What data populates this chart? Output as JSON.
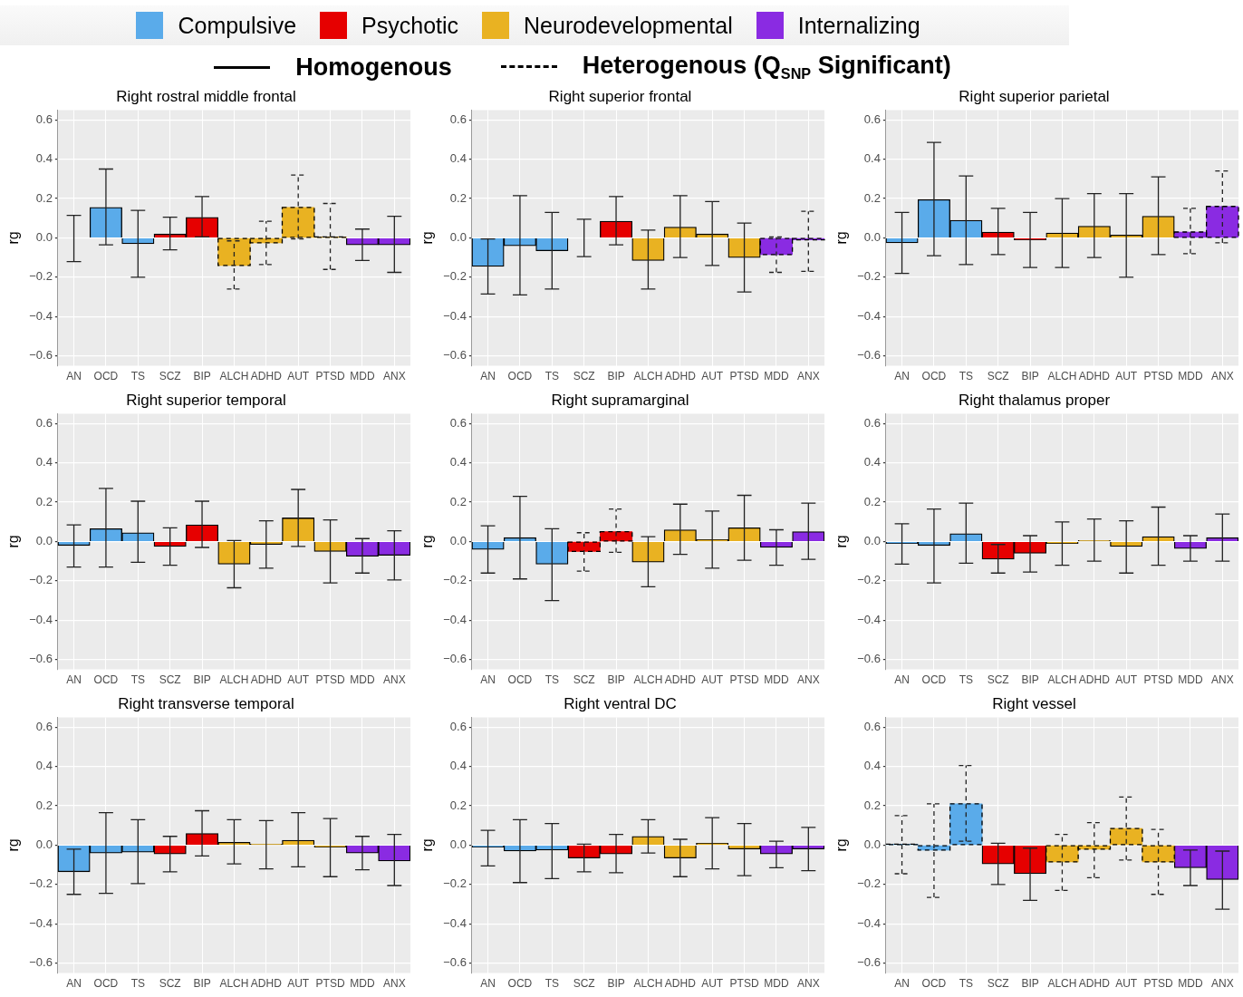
{
  "chart_data": [
    {
      "type": "bar",
      "title": "Right rostral middle frontal",
      "ylabel": "rg",
      "categories": [
        "AN",
        "OCD",
        "TS",
        "SCZ",
        "BIP",
        "ALCH",
        "ADHD",
        "AUT",
        "PTSD",
        "MDD",
        "ANX"
      ],
      "ylim": [
        -0.65,
        0.65
      ],
      "yticks": [
        {
          "value": -0.6,
          "label": "−0.6"
        },
        {
          "value": -0.4,
          "label": "−0.4"
        },
        {
          "value": -0.2,
          "label": "−0.2"
        },
        {
          "value": 0,
          "label": "0.0"
        },
        0.2,
        0.4,
        0.6
      ],
      "grid": true,
      "legend": "top",
      "annotations": [
        "Homogenous",
        "Heterogenous (Q$_{SNP}$ Significant)"
      ],
      "series": [
        {
          "name": "Compulsive",
          "color": "#5aabea",
          "line_style": "solid",
          "values": [
            0,
            0.155,
            -0.03,
            null,
            null,
            null,
            null,
            null,
            null,
            null,
            null
          ],
          "errors": [
            [
              -0.12,
              0.115
            ],
            [
              -0.035,
              0.35
            ],
            [
              -0.2,
              0.14
            ],
            null,
            null,
            null,
            null,
            null,
            null,
            null,
            null
          ]
        },
        {
          "name": "Psychotic",
          "color": "#e60000",
          "line_style": "solid",
          "values": [
            null,
            null,
            null,
            0.02,
            0.105,
            null,
            null,
            null,
            null,
            null,
            null
          ],
          "errors": [
            null,
            null,
            null,
            [
              -0.06,
              0.105
            ],
            [
              0.005,
              0.21
            ],
            null,
            null,
            null,
            null,
            null,
            null
          ]
        },
        {
          "name": "Neurodevelopmental",
          "color": "#e9b222",
          "line_style": "dashed",
          "values": [
            null,
            null,
            null,
            null,
            null,
            -0.14,
            -0.025,
            0.155,
            0.005,
            null,
            null
          ],
          "errors": [
            null,
            null,
            null,
            null,
            null,
            [
              -0.26,
              -0.015
            ],
            [
              -0.135,
              0.085
            ],
            [
              -0.005,
              0.32
            ],
            [
              -0.16,
              0.175
            ],
            null,
            null
          ]
        },
        {
          "name": "Internalizing",
          "color": "#8a2be2",
          "line_style": "solid",
          "values": [
            null,
            null,
            null,
            null,
            null,
            null,
            null,
            null,
            null,
            -0.035,
            -0.035
          ],
          "errors": [
            null,
            null,
            null,
            null,
            null,
            null,
            null,
            null,
            null,
            [
              -0.115,
              0.045
            ],
            [
              -0.175,
              0.11
            ]
          ]
        }
      ]
    },
    {
      "type": "bar",
      "title": "Right superior frontal",
      "ylabel": "rg",
      "categories": [
        "AN",
        "OCD",
        "TS",
        "SCZ",
        "BIP",
        "ALCH",
        "ADHD",
        "AUT",
        "PTSD",
        "MDD",
        "ANX"
      ],
      "ylim": [
        -0.65,
        0.65
      ],
      "yticks": [
        {
          "value": -0.6,
          "label": "−0.6"
        },
        {
          "value": -0.4,
          "label": "−0.4"
        },
        {
          "value": -0.2,
          "label": "−0.2"
        },
        {
          "value": 0,
          "label": "0.0"
        },
        0.2,
        0.4,
        0.6
      ],
      "grid": true,
      "series": [
        {
          "color": "#5aabea",
          "line_style": "solid",
          "values": [
            -0.145,
            -0.04,
            -0.065,
            null,
            null,
            null,
            null,
            null,
            null,
            null,
            null
          ],
          "errors": [
            [
              -0.285,
              -0.005
            ],
            [
              -0.29,
              0.215
            ],
            [
              -0.26,
              0.13
            ],
            null,
            null,
            null,
            null,
            null,
            null,
            null,
            null
          ]
        },
        {
          "color": "#e60000",
          "line_style": "solid",
          "values": [
            null,
            null,
            null,
            0,
            0.085,
            null,
            null,
            null,
            null,
            null,
            null
          ],
          "errors": [
            null,
            null,
            null,
            [
              -0.095,
              0.095
            ],
            [
              -0.035,
              0.21
            ],
            null,
            null,
            null,
            null,
            null,
            null
          ]
        },
        {
          "color": "#e9b222",
          "line_style": "solid",
          "values": [
            null,
            null,
            null,
            null,
            null,
            -0.115,
            0.055,
            0.02,
            -0.1,
            null,
            null
          ],
          "errors": [
            null,
            null,
            null,
            null,
            null,
            [
              -0.26,
              0.04
            ],
            [
              -0.1,
              0.215
            ],
            [
              -0.14,
              0.185
            ],
            [
              -0.275,
              0.075
            ],
            null,
            null
          ]
        },
        {
          "color": "#8a2be2",
          "line_style": "dashed",
          "values": [
            null,
            null,
            null,
            null,
            null,
            null,
            null,
            null,
            null,
            -0.085,
            -0.01
          ],
          "errors": [
            null,
            null,
            null,
            null,
            null,
            null,
            null,
            null,
            null,
            [
              -0.175,
              0.005
            ],
            [
              -0.17,
              0.135
            ]
          ]
        }
      ]
    },
    {
      "type": "bar",
      "title": "Right superior parietal",
      "ylabel": "rg",
      "categories": [
        "AN",
        "OCD",
        "TS",
        "SCZ",
        "BIP",
        "ALCH",
        "ADHD",
        "AUT",
        "PTSD",
        "MDD",
        "ANX"
      ],
      "ylim": [
        -0.65,
        0.65
      ],
      "yticks": [
        {
          "value": -0.6,
          "label": "−0.6"
        },
        {
          "value": -0.4,
          "label": "−0.4"
        },
        {
          "value": -0.2,
          "label": "−0.2"
        },
        {
          "value": 0,
          "label": "0.0"
        },
        0.2,
        0.4,
        0.6
      ],
      "grid": true,
      "series": [
        {
          "color": "#5aabea",
          "line_style": "solid",
          "values": [
            -0.025,
            0.195,
            0.09,
            null,
            null,
            null,
            null,
            null,
            null,
            null,
            null
          ],
          "errors": [
            [
              -0.18,
              0.13
            ],
            [
              -0.09,
              0.485
            ],
            [
              -0.135,
              0.315
            ],
            null,
            null,
            null,
            null,
            null,
            null,
            null,
            null
          ]
        },
        {
          "color": "#e60000",
          "line_style": "solid",
          "values": [
            null,
            null,
            null,
            0.03,
            -0.01,
            null,
            null,
            null,
            null,
            null,
            null
          ],
          "errors": [
            null,
            null,
            null,
            [
              -0.085,
              0.15
            ],
            [
              -0.15,
              0.13
            ],
            null,
            null,
            null,
            null,
            null,
            null
          ]
        },
        {
          "color": "#e9b222",
          "line_style": "solid",
          "values": [
            null,
            null,
            null,
            null,
            null,
            0.025,
            0.06,
            0.015,
            0.11,
            null,
            null
          ],
          "errors": [
            null,
            null,
            null,
            null,
            null,
            [
              -0.15,
              0.2
            ],
            [
              -0.1,
              0.225
            ],
            [
              -0.2,
              0.225
            ],
            [
              -0.085,
              0.31
            ],
            null,
            null
          ]
        },
        {
          "color": "#8a2be2",
          "line_style": "dashed",
          "values": [
            null,
            null,
            null,
            null,
            null,
            null,
            null,
            null,
            null,
            0.03,
            0.16
          ],
          "errors": [
            null,
            null,
            null,
            null,
            null,
            null,
            null,
            null,
            null,
            [
              -0.08,
              0.15
            ],
            [
              -0.025,
              0.34
            ]
          ]
        }
      ]
    },
    {
      "type": "bar",
      "title": "Right superior temporal",
      "ylabel": "rg",
      "categories": [
        "AN",
        "OCD",
        "TS",
        "SCZ",
        "BIP",
        "ALCH",
        "ADHD",
        "AUT",
        "PTSD",
        "MDD",
        "ANX"
      ],
      "ylim": [
        -0.65,
        0.65
      ],
      "yticks": [
        {
          "value": -0.6,
          "label": "−0.6"
        },
        {
          "value": -0.4,
          "label": "−0.4"
        },
        {
          "value": -0.2,
          "label": "−0.2"
        },
        {
          "value": 0,
          "label": "0.0"
        },
        0.2,
        0.4,
        0.6
      ],
      "grid": true,
      "series": [
        {
          "color": "#5aabea",
          "line_style": "solid",
          "values": [
            -0.02,
            0.065,
            0.045,
            null,
            null,
            null,
            null,
            null,
            null,
            null,
            null
          ],
          "errors": [
            [
              -0.13,
              0.085
            ],
            [
              -0.13,
              0.27
            ],
            [
              -0.105,
              0.205
            ],
            null,
            null,
            null,
            null,
            null,
            null,
            null,
            null
          ]
        },
        {
          "color": "#e60000",
          "line_style": "solid",
          "values": [
            null,
            null,
            null,
            -0.025,
            0.085,
            null,
            null,
            null,
            null,
            null,
            null
          ],
          "errors": [
            null,
            null,
            null,
            [
              -0.12,
              0.07
            ],
            [
              -0.03,
              0.205
            ],
            null,
            null,
            null,
            null,
            null,
            null
          ]
        },
        {
          "color": "#e9b222",
          "line_style": "solid",
          "values": [
            null,
            null,
            null,
            null,
            null,
            -0.115,
            -0.015,
            0.12,
            -0.05,
            null,
            null
          ],
          "errors": [
            null,
            null,
            null,
            null,
            null,
            [
              -0.235,
              0.005
            ],
            [
              -0.135,
              0.105
            ],
            [
              -0.025,
              0.265
            ],
            [
              -0.21,
              0.11
            ],
            null,
            null
          ]
        },
        {
          "color": "#8a2be2",
          "line_style": "solid",
          "values": [
            null,
            null,
            null,
            null,
            null,
            null,
            null,
            null,
            null,
            -0.075,
            -0.07
          ],
          "errors": [
            null,
            null,
            null,
            null,
            null,
            null,
            null,
            null,
            null,
            [
              -0.16,
              0.015
            ],
            [
              -0.195,
              0.055
            ]
          ]
        }
      ]
    },
    {
      "type": "bar",
      "title": "Right supramarginal",
      "ylabel": "rg",
      "categories": [
        "AN",
        "OCD",
        "TS",
        "SCZ",
        "BIP",
        "ALCH",
        "ADHD",
        "AUT",
        "PTSD",
        "MDD",
        "ANX"
      ],
      "ylim": [
        -0.65,
        0.65
      ],
      "yticks": [
        {
          "value": -0.6,
          "label": "−0.6"
        },
        {
          "value": -0.4,
          "label": "−0.4"
        },
        {
          "value": -0.2,
          "label": "−0.2"
        },
        {
          "value": 0,
          "label": "0.0"
        },
        0.2,
        0.4,
        0.6
      ],
      "grid": true,
      "series": [
        {
          "color": "#5aabea",
          "line_style": "solid",
          "values": [
            -0.04,
            0.02,
            -0.115,
            null,
            null,
            null,
            null,
            null,
            null,
            null,
            null
          ],
          "errors": [
            [
              -0.16,
              0.08
            ],
            [
              -0.19,
              0.23
            ],
            [
              -0.3,
              0.065
            ],
            null,
            null,
            null,
            null,
            null,
            null,
            null,
            null
          ]
        },
        {
          "color": "#e60000",
          "line_style": "dashed",
          "values": [
            null,
            null,
            null,
            -0.05,
            0.05,
            null,
            null,
            null,
            null,
            null,
            null
          ],
          "errors": [
            null,
            null,
            null,
            [
              -0.15,
              0.045
            ],
            [
              -0.055,
              0.165
            ],
            null,
            null,
            null,
            null,
            null,
            null
          ]
        },
        {
          "color": "#e9b222",
          "line_style": "solid",
          "values": [
            null,
            null,
            null,
            null,
            null,
            -0.105,
            0.06,
            0.01,
            0.07,
            null,
            null
          ],
          "errors": [
            null,
            null,
            null,
            null,
            null,
            [
              -0.23,
              0.025
            ],
            [
              -0.065,
              0.19
            ],
            [
              -0.135,
              0.155
            ],
            [
              -0.095,
              0.235
            ],
            null,
            null
          ]
        },
        {
          "color": "#8a2be2",
          "line_style": "solid",
          "values": [
            null,
            null,
            null,
            null,
            null,
            null,
            null,
            null,
            null,
            -0.03,
            0.05
          ],
          "errors": [
            null,
            null,
            null,
            null,
            null,
            null,
            null,
            null,
            null,
            [
              -0.12,
              0.06
            ],
            [
              -0.09,
              0.195
            ]
          ]
        }
      ]
    },
    {
      "type": "bar",
      "title": "Right thalamus proper",
      "ylabel": "rg",
      "categories": [
        "AN",
        "OCD",
        "TS",
        "SCZ",
        "BIP",
        "ALCH",
        "ADHD",
        "AUT",
        "PTSD",
        "MDD",
        "ANX"
      ],
      "ylim": [
        -0.65,
        0.65
      ],
      "yticks": [
        {
          "value": -0.6,
          "label": "−0.6"
        },
        {
          "value": -0.4,
          "label": "−0.4"
        },
        {
          "value": -0.2,
          "label": "−0.2"
        },
        {
          "value": 0,
          "label": "0.0"
        },
        0.2,
        0.4,
        0.6
      ],
      "grid": true,
      "series": [
        {
          "color": "#5aabea",
          "line_style": "solid",
          "values": [
            -0.01,
            -0.02,
            0.04,
            null,
            null,
            null,
            null,
            null,
            null,
            null,
            null
          ],
          "errors": [
            [
              -0.115,
              0.09
            ],
            [
              -0.21,
              0.165
            ],
            [
              -0.11,
              0.195
            ],
            null,
            null,
            null,
            null,
            null,
            null,
            null,
            null
          ]
        },
        {
          "color": "#e60000",
          "line_style": "solid",
          "values": [
            null,
            null,
            null,
            -0.09,
            -0.06,
            null,
            null,
            null,
            null,
            null,
            null
          ],
          "errors": [
            null,
            null,
            null,
            [
              -0.16,
              -0.015
            ],
            [
              -0.155,
              0.03
            ],
            null,
            null,
            null,
            null,
            null,
            null
          ]
        },
        {
          "color": "#e9b222",
          "line_style": "solid",
          "values": [
            null,
            null,
            null,
            null,
            null,
            -0.01,
            0.005,
            -0.025,
            0.025,
            null,
            null
          ],
          "errors": [
            null,
            null,
            null,
            null,
            null,
            [
              -0.12,
              0.1
            ],
            [
              -0.1,
              0.115
            ],
            [
              -0.16,
              0.105
            ],
            [
              -0.12,
              0.175
            ],
            null,
            null
          ]
        },
        {
          "color": "#8a2be2",
          "line_style": "solid",
          "values": [
            null,
            null,
            null,
            null,
            null,
            null,
            null,
            null,
            null,
            -0.035,
            0.02
          ],
          "errors": [
            null,
            null,
            null,
            null,
            null,
            null,
            null,
            null,
            null,
            [
              -0.1,
              0.03
            ],
            [
              -0.1,
              0.14
            ]
          ]
        }
      ]
    },
    {
      "type": "bar",
      "title": "Right transverse temporal",
      "ylabel": "rg",
      "categories": [
        "AN",
        "OCD",
        "TS",
        "SCZ",
        "BIP",
        "ALCH",
        "ADHD",
        "AUT",
        "PTSD",
        "MDD",
        "ANX"
      ],
      "ylim": [
        -0.65,
        0.65
      ],
      "yticks": [
        {
          "value": -0.6,
          "label": "−0.6"
        },
        {
          "value": -0.4,
          "label": "−0.4"
        },
        {
          "value": -0.2,
          "label": "−0.2"
        },
        {
          "value": 0,
          "label": "0.0"
        },
        0.2,
        0.4,
        0.6
      ],
      "grid": true,
      "series": [
        {
          "color": "#5aabea",
          "line_style": "solid",
          "values": [
            -0.135,
            -0.04,
            -0.035,
            null,
            null,
            null,
            null,
            null,
            null,
            null,
            null
          ],
          "errors": [
            [
              -0.25,
              -0.02
            ],
            [
              -0.245,
              0.165
            ],
            [
              -0.195,
              0.13
            ],
            null,
            null,
            null,
            null,
            null,
            null,
            null,
            null
          ]
        },
        {
          "color": "#e60000",
          "line_style": "solid",
          "values": [
            null,
            null,
            null,
            -0.045,
            0.06,
            null,
            null,
            null,
            null,
            null,
            null
          ],
          "errors": [
            null,
            null,
            null,
            [
              -0.135,
              0.045
            ],
            [
              -0.055,
              0.175
            ],
            null,
            null,
            null,
            null,
            null,
            null
          ]
        },
        {
          "color": "#e9b222",
          "line_style": "solid",
          "values": [
            null,
            null,
            null,
            null,
            null,
            0.015,
            0.005,
            0.025,
            -0.01,
            null,
            null
          ],
          "errors": [
            null,
            null,
            null,
            null,
            null,
            [
              -0.095,
              0.13
            ],
            [
              -0.12,
              0.125
            ],
            [
              -0.11,
              0.165
            ],
            [
              -0.16,
              0.135
            ],
            null,
            null
          ]
        },
        {
          "color": "#8a2be2",
          "line_style": "solid",
          "values": [
            null,
            null,
            null,
            null,
            null,
            null,
            null,
            null,
            null,
            -0.04,
            -0.08
          ],
          "errors": [
            null,
            null,
            null,
            null,
            null,
            null,
            null,
            null,
            null,
            [
              -0.125,
              0.045
            ],
            [
              -0.205,
              0.055
            ]
          ]
        }
      ]
    },
    {
      "type": "bar",
      "title": "Right ventral DC",
      "ylabel": "rg",
      "categories": [
        "AN",
        "OCD",
        "TS",
        "SCZ",
        "BIP",
        "ALCH",
        "ADHD",
        "AUT",
        "PTSD",
        "MDD",
        "ANX"
      ],
      "ylim": [
        -0.65,
        0.65
      ],
      "yticks": [
        {
          "value": -0.6,
          "label": "−0.6"
        },
        {
          "value": -0.4,
          "label": "−0.4"
        },
        {
          "value": -0.2,
          "label": "−0.2"
        },
        {
          "value": 0,
          "label": "0.0"
        },
        0.2,
        0.4,
        0.6
      ],
      "grid": true,
      "series": [
        {
          "color": "#5aabea",
          "line_style": "solid",
          "values": [
            -0.01,
            -0.03,
            -0.025,
            null,
            null,
            null,
            null,
            null,
            null,
            null,
            null
          ],
          "errors": [
            [
              -0.105,
              0.075
            ],
            [
              -0.19,
              0.13
            ],
            [
              -0.17,
              0.11
            ],
            null,
            null,
            null,
            null,
            null,
            null,
            null,
            null
          ]
        },
        {
          "color": "#e60000",
          "line_style": "solid",
          "values": [
            null,
            null,
            null,
            -0.065,
            -0.045,
            null,
            null,
            null,
            null,
            null,
            null
          ],
          "errors": [
            null,
            null,
            null,
            [
              -0.135,
              0.005
            ],
            [
              -0.14,
              0.055
            ],
            null,
            null,
            null,
            null,
            null,
            null
          ]
        },
        {
          "color": "#e9b222",
          "line_style": "solid",
          "values": [
            null,
            null,
            null,
            null,
            null,
            0.045,
            -0.065,
            0.01,
            -0.02,
            null,
            null
          ],
          "errors": [
            null,
            null,
            null,
            null,
            null,
            [
              -0.04,
              0.13
            ],
            [
              -0.16,
              0.03
            ],
            [
              -0.12,
              0.14
            ],
            [
              -0.155,
              0.11
            ],
            null,
            null
          ]
        },
        {
          "color": "#8a2be2",
          "line_style": "solid",
          "values": [
            null,
            null,
            null,
            null,
            null,
            null,
            null,
            null,
            null,
            -0.045,
            -0.02
          ],
          "errors": [
            null,
            null,
            null,
            null,
            null,
            null,
            null,
            null,
            null,
            [
              -0.115,
              0.02
            ],
            [
              -0.13,
              0.09
            ]
          ]
        }
      ]
    },
    {
      "type": "bar",
      "title": "Right vessel",
      "ylabel": "rg",
      "categories": [
        "AN",
        "OCD",
        "TS",
        "SCZ",
        "BIP",
        "ALCH",
        "ADHD",
        "AUT",
        "PTSD",
        "MDD",
        "ANX"
      ],
      "ylim": [
        -0.65,
        0.65
      ],
      "yticks": [
        {
          "value": -0.6,
          "label": "−0.6"
        },
        {
          "value": -0.4,
          "label": "−0.4"
        },
        {
          "value": -0.2,
          "label": "−0.2"
        },
        {
          "value": 0,
          "label": "0.0"
        },
        0.2,
        0.4,
        0.6
      ],
      "grid": true,
      "series": [
        {
          "color": "#5aabea",
          "line_style": "dashed",
          "values": [
            0.005,
            -0.025,
            0.21,
            null,
            null,
            null,
            null,
            null,
            null,
            null,
            null
          ],
          "errors": [
            [
              -0.145,
              0.15
            ],
            [
              -0.265,
              0.21
            ],
            [
              0.02,
              0.405
            ],
            null,
            null,
            null,
            null,
            null,
            null,
            null,
            null
          ]
        },
        {
          "color": "#e60000",
          "line_style": "solid",
          "values": [
            null,
            null,
            null,
            -0.095,
            -0.145,
            null,
            null,
            null,
            null,
            null,
            null
          ],
          "errors": [
            null,
            null,
            null,
            [
              -0.2,
              0.01
            ],
            [
              -0.28,
              -0.015
            ],
            null,
            null,
            null,
            null,
            null,
            null
          ]
        },
        {
          "color": "#e9b222",
          "line_style": "dashed",
          "values": [
            null,
            null,
            null,
            null,
            null,
            -0.085,
            -0.02,
            0.085,
            -0.085,
            null,
            null
          ],
          "errors": [
            null,
            null,
            null,
            null,
            null,
            [
              -0.23,
              0.055
            ],
            [
              -0.165,
              0.115
            ],
            [
              -0.075,
              0.245
            ],
            [
              -0.25,
              0.08
            ],
            null,
            null
          ]
        },
        {
          "color": "#8a2be2",
          "line_style": "solid",
          "values": [
            null,
            null,
            null,
            null,
            null,
            null,
            null,
            null,
            null,
            -0.115,
            -0.175
          ],
          "errors": [
            null,
            null,
            null,
            null,
            null,
            null,
            null,
            null,
            null,
            [
              -0.205,
              -0.025
            ],
            [
              -0.325,
              -0.03
            ]
          ]
        }
      ]
    }
  ]
}
